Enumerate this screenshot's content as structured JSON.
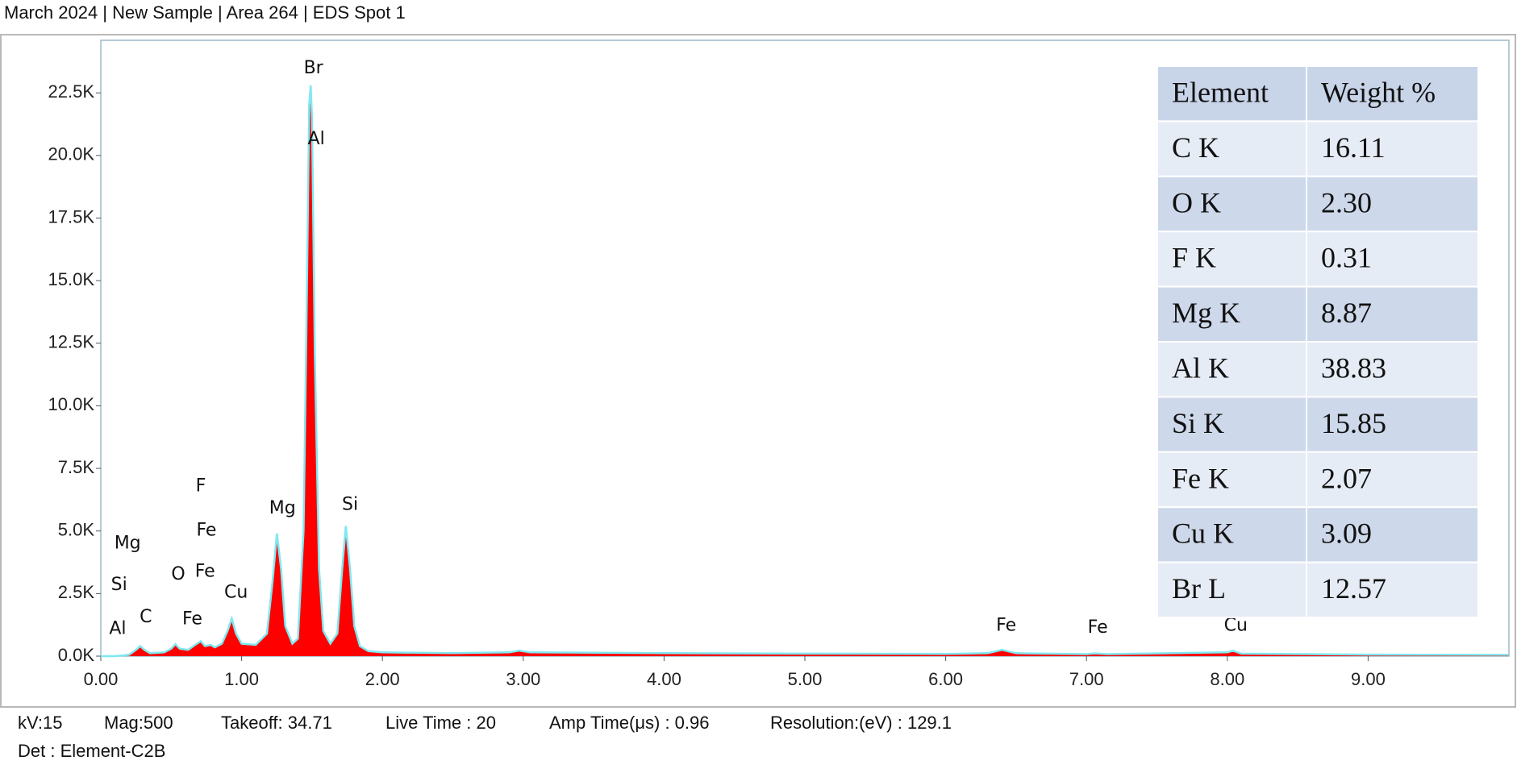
{
  "chart_data": {
    "type": "area",
    "title": "March 2024 | New Sample | Area 264 | EDS Spot 1",
    "x": [
      0.0,
      0.1,
      0.2,
      0.25,
      0.28,
      0.31,
      0.35,
      0.45,
      0.5,
      0.53,
      0.56,
      0.62,
      0.67,
      0.71,
      0.74,
      0.78,
      0.81,
      0.86,
      0.9,
      0.93,
      0.96,
      1.0,
      1.1,
      1.18,
      1.22,
      1.25,
      1.28,
      1.31,
      1.36,
      1.4,
      1.44,
      1.46,
      1.48,
      1.49,
      1.5,
      1.52,
      1.55,
      1.58,
      1.63,
      1.68,
      1.71,
      1.74,
      1.77,
      1.8,
      1.84,
      1.9,
      2.0,
      2.5,
      2.9,
      2.97,
      3.05,
      4.0,
      5.0,
      6.0,
      6.3,
      6.4,
      6.5,
      7.0,
      7.06,
      7.15,
      8.0,
      8.04,
      8.1,
      9.0,
      10.0
    ],
    "values": [
      0,
      0,
      50,
      250,
      400,
      250,
      120,
      150,
      300,
      480,
      300,
      250,
      450,
      600,
      400,
      450,
      350,
      500,
      1000,
      1500,
      900,
      500,
      450,
      900,
      3000,
      4900,
      3500,
      1200,
      500,
      700,
      5000,
      13000,
      22000,
      22800,
      21500,
      12000,
      3500,
      1000,
      500,
      900,
      3200,
      5200,
      3500,
      1200,
      400,
      200,
      150,
      120,
      150,
      220,
      150,
      120,
      100,
      90,
      120,
      250,
      120,
      80,
      110,
      80,
      150,
      220,
      100,
      60,
      50
    ],
    "fill_color": "#ff0000",
    "line_color": "#7fe8f0",
    "xlim": [
      0,
      10
    ],
    "ylim": [
      0,
      24600
    ],
    "xticks": [
      {
        "value": 0,
        "label": "0.00"
      },
      {
        "value": 1,
        "label": "1.00"
      },
      {
        "value": 2,
        "label": "2.00"
      },
      {
        "value": 3,
        "label": "3.00"
      },
      {
        "value": 4,
        "label": "4.00"
      },
      {
        "value": 5,
        "label": "5.00"
      },
      {
        "value": 6,
        "label": "6.00"
      },
      {
        "value": 7,
        "label": "7.00"
      },
      {
        "value": 8,
        "label": "8.00"
      },
      {
        "value": 9,
        "label": "9.00"
      }
    ],
    "yticks": [
      {
        "value": 0,
        "label": "0.0K"
      },
      {
        "value": 2500,
        "label": "2.5K"
      },
      {
        "value": 5000,
        "label": "5.0K"
      },
      {
        "value": 7500,
        "label": "7.5K"
      },
      {
        "value": 10000,
        "label": "10.0K"
      },
      {
        "value": 12500,
        "label": "12.5K"
      },
      {
        "value": 15000,
        "label": "15.0K"
      },
      {
        "value": 17500,
        "label": "17.5K"
      },
      {
        "value": 20000,
        "label": "20.0K"
      },
      {
        "value": 22500,
        "label": "22.5K"
      }
    ],
    "peak_labels": [
      {
        "text": "Br",
        "x": 1.51,
        "y": 23470
      },
      {
        "text": "Al",
        "x": 1.53,
        "y": 20640
      },
      {
        "text": "Mg",
        "x": 1.29,
        "y": 5890
      },
      {
        "text": "Si",
        "x": 1.77,
        "y": 6040
      },
      {
        "text": "Cu",
        "x": 0.96,
        "y": 2520
      },
      {
        "text": "F",
        "x": 0.71,
        "y": 6780
      },
      {
        "text": "Fe",
        "x": 0.75,
        "y": 5000
      },
      {
        "text": "Fe",
        "x": 0.74,
        "y": 3370
      },
      {
        "text": "O",
        "x": 0.55,
        "y": 3250
      },
      {
        "text": "Fe",
        "x": 0.65,
        "y": 1470
      },
      {
        "text": "C",
        "x": 0.32,
        "y": 1550
      },
      {
        "text": "Mg",
        "x": 0.19,
        "y": 4490
      },
      {
        "text": "Si",
        "x": 0.13,
        "y": 2830
      },
      {
        "text": "Al",
        "x": 0.12,
        "y": 1080
      },
      {
        "text": "Fe",
        "x": 6.43,
        "y": 1200
      },
      {
        "text": "Fe",
        "x": 7.08,
        "y": 1120
      },
      {
        "text": "Cu",
        "x": 8.06,
        "y": 1200
      }
    ]
  },
  "table": {
    "header": [
      "Element",
      "Weight %"
    ],
    "rows": [
      [
        "C K",
        "16.11"
      ],
      [
        "O K",
        "2.30"
      ],
      [
        "F K",
        "0.31"
      ],
      [
        "Mg K",
        "8.87"
      ],
      [
        "Al K",
        "38.83"
      ],
      [
        "Si K",
        "15.85"
      ],
      [
        "Fe K",
        "2.07"
      ],
      [
        "Cu K",
        "3.09"
      ],
      [
        "Br L",
        "12.57"
      ]
    ]
  },
  "footer": [
    "kV:15",
    "Mag:500",
    "Takeoff: 34.71",
    "Live Time : 20",
    "Amp Time(μs) : 0.96",
    "Resolution:(eV) : 129.1",
    "Det : Element-C2B"
  ]
}
